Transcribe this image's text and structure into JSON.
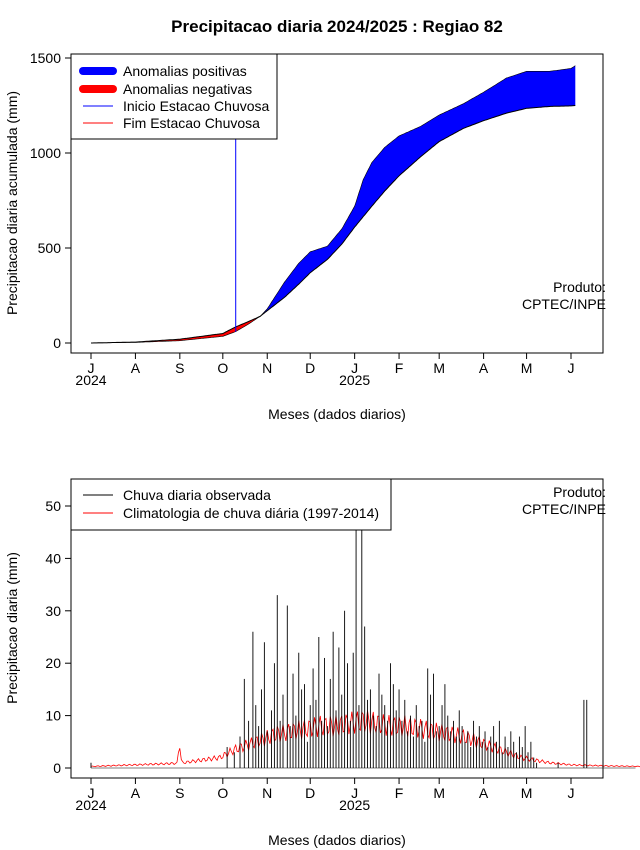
{
  "chart_data": [
    {
      "type": "area",
      "title": "Precipitacao diaria 2024/2025 : Regiao 82",
      "xlabel": "Meses (dados diarios)",
      "ylabel": "Precipitacao diaria acumulada (mm)",
      "ylim": [
        0,
        1500
      ],
      "yticks": [
        0,
        500,
        1000,
        1500
      ],
      "xlim": [
        0,
        384
      ],
      "month_ticks": [
        {
          "label": "J",
          "day": 0
        },
        {
          "label": "A",
          "day": 31
        },
        {
          "label": "S",
          "day": 62
        },
        {
          "label": "O",
          "day": 92
        },
        {
          "label": "N",
          "day": 123
        },
        {
          "label": "D",
          "day": 153
        },
        {
          "label": "J",
          "day": 184
        },
        {
          "label": "F",
          "day": 215
        },
        {
          "label": "M",
          "day": 243
        },
        {
          "label": "A",
          "day": 274
        },
        {
          "label": "M",
          "day": 304
        },
        {
          "label": "J",
          "day": 335
        }
      ],
      "year_labels": [
        {
          "label": "2024",
          "day": 0
        },
        {
          "label": "2025",
          "day": 184
        }
      ],
      "rainy_season_start_day": 101,
      "observed_cumulative": {
        "day": [
          0,
          31,
          62,
          92,
          101,
          109,
          118,
          123,
          135,
          145,
          153,
          165,
          175,
          184,
          190,
          196,
          205,
          215,
          230,
          243,
          260,
          274,
          290,
          304,
          320,
          335,
          338
        ],
        "value": [
          0,
          3,
          12,
          35,
          60,
          95,
          140,
          180,
          320,
          420,
          480,
          510,
          600,
          720,
          860,
          950,
          1030,
          1090,
          1140,
          1200,
          1260,
          1320,
          1395,
          1430,
          1430,
          1445,
          1460
        ]
      },
      "climatology_cumulative": {
        "day": [
          0,
          31,
          62,
          92,
          101,
          109,
          118,
          123,
          135,
          145,
          153,
          165,
          175,
          184,
          196,
          205,
          215,
          230,
          243,
          260,
          274,
          290,
          304,
          320,
          335,
          338
        ],
        "value": [
          0,
          5,
          20,
          50,
          85,
          110,
          140,
          170,
          240,
          310,
          370,
          440,
          520,
          610,
          720,
          800,
          880,
          980,
          1060,
          1130,
          1170,
          1210,
          1235,
          1245,
          1248,
          1250
        ]
      },
      "legend": [
        {
          "label": "Anomalias positivas",
          "color": "#0000ff",
          "style": "thick"
        },
        {
          "label": "Anomalias negativas",
          "color": "#ff0000",
          "style": "thick"
        },
        {
          "label": "Inicio Estacao Chuvosa",
          "color": "#0000ff",
          "style": "thin"
        },
        {
          "label": "Fim Estacao Chuvosa",
          "color": "#ff0000",
          "style": "thin"
        }
      ],
      "legend_position": "top-left",
      "annotation": [
        "Produto:",
        "CPTEC/INPE"
      ]
    },
    {
      "type": "bar",
      "title": "",
      "xlabel": "Meses (dados diarios)",
      "ylabel": "Precipitacao diaria (mm)",
      "ylim": [
        0,
        55
      ],
      "yticks": [
        0,
        10,
        20,
        30,
        40,
        50
      ],
      "xlim": [
        0,
        384
      ],
      "month_ticks": [
        {
          "label": "J",
          "day": 0
        },
        {
          "label": "A",
          "day": 31
        },
        {
          "label": "S",
          "day": 62
        },
        {
          "label": "O",
          "day": 92
        },
        {
          "label": "N",
          "day": 123
        },
        {
          "label": "D",
          "day": 153
        },
        {
          "label": "J",
          "day": 184
        },
        {
          "label": "F",
          "day": 215
        },
        {
          "label": "M",
          "day": 243
        },
        {
          "label": "A",
          "day": 274
        },
        {
          "label": "M",
          "day": 304
        },
        {
          "label": "J",
          "day": 335
        }
      ],
      "year_labels": [
        {
          "label": "2024",
          "day": 0
        },
        {
          "label": "2025",
          "day": 184
        }
      ],
      "observed_daily": {
        "day": [
          0,
          95,
          100,
          104,
          107,
          110,
          113,
          115,
          117,
          119,
          121,
          123,
          126,
          128,
          130,
          132,
          134,
          137,
          139,
          141,
          143,
          145,
          147,
          149,
          151,
          153,
          155,
          157,
          159,
          161,
          163,
          165,
          167,
          169,
          171,
          173,
          175,
          177,
          179,
          181,
          183,
          185,
          187,
          189,
          191,
          193,
          195,
          197,
          199,
          201,
          203,
          205,
          207,
          209,
          211,
          213,
          215,
          217,
          219,
          221,
          223,
          225,
          227,
          229,
          231,
          233,
          235,
          237,
          239,
          241,
          243,
          245,
          247,
          249,
          251,
          253,
          255,
          257,
          259,
          261,
          263,
          265,
          267,
          269,
          271,
          273,
          275,
          277,
          279,
          281,
          283,
          285,
          287,
          289,
          291,
          293,
          295,
          297,
          299,
          301,
          303,
          305,
          307,
          309,
          311,
          326,
          344,
          346
        ],
        "value": [
          1,
          4,
          3,
          6,
          17,
          9,
          26,
          12,
          8,
          15,
          24,
          7,
          11,
          20,
          33,
          9,
          14,
          31,
          8,
          18,
          10,
          22,
          15,
          16,
          5,
          12,
          19,
          13,
          25,
          9,
          21,
          8,
          17,
          26,
          11,
          23,
          14,
          30,
          20,
          9,
          22,
          46,
          12,
          48,
          27,
          13,
          15,
          10,
          8,
          18,
          14,
          12,
          9,
          20,
          16,
          11,
          15,
          9,
          13,
          7,
          10,
          6,
          12,
          8,
          9,
          5,
          19,
          14,
          18,
          7,
          8,
          12,
          16,
          10,
          7,
          9,
          6,
          11,
          8,
          5,
          7,
          4,
          9,
          6,
          8,
          5,
          7,
          4,
          6,
          8,
          5,
          9,
          3,
          6,
          4,
          7,
          5,
          3,
          6,
          4,
          8,
          3,
          5,
          2,
          1,
          1,
          13,
          13
        ]
      },
      "climatology_daily": {
        "day": [
          0,
          30,
          60,
          62,
          63,
          64,
          90,
          100,
          110,
          120,
          130,
          140,
          150,
          160,
          170,
          180,
          190,
          200,
          210,
          220,
          230,
          240,
          250,
          260,
          270,
          280,
          290,
          300,
          310,
          320,
          335,
          360,
          384
        ],
        "value": [
          0.3,
          0.6,
          0.9,
          5,
          1.5,
          1,
          2,
          3.5,
          4.5,
          5.5,
          6.5,
          7,
          7.5,
          8,
          8,
          8.5,
          9,
          8.5,
          8,
          8,
          7.5,
          7,
          6.5,
          6,
          5,
          4,
          3,
          2,
          1.5,
          1,
          0.6,
          0.4,
          0.3
        ]
      },
      "legend": [
        {
          "label": "Chuva diaria observada",
          "color": "#000000",
          "style": "thin"
        },
        {
          "label": "Climatologia de chuva diária (1997-2014)",
          "color": "#ff0000",
          "style": "thin"
        }
      ],
      "legend_position": "top-left",
      "annotation": [
        "Produto:",
        "CPTEC/INPE"
      ]
    }
  ]
}
